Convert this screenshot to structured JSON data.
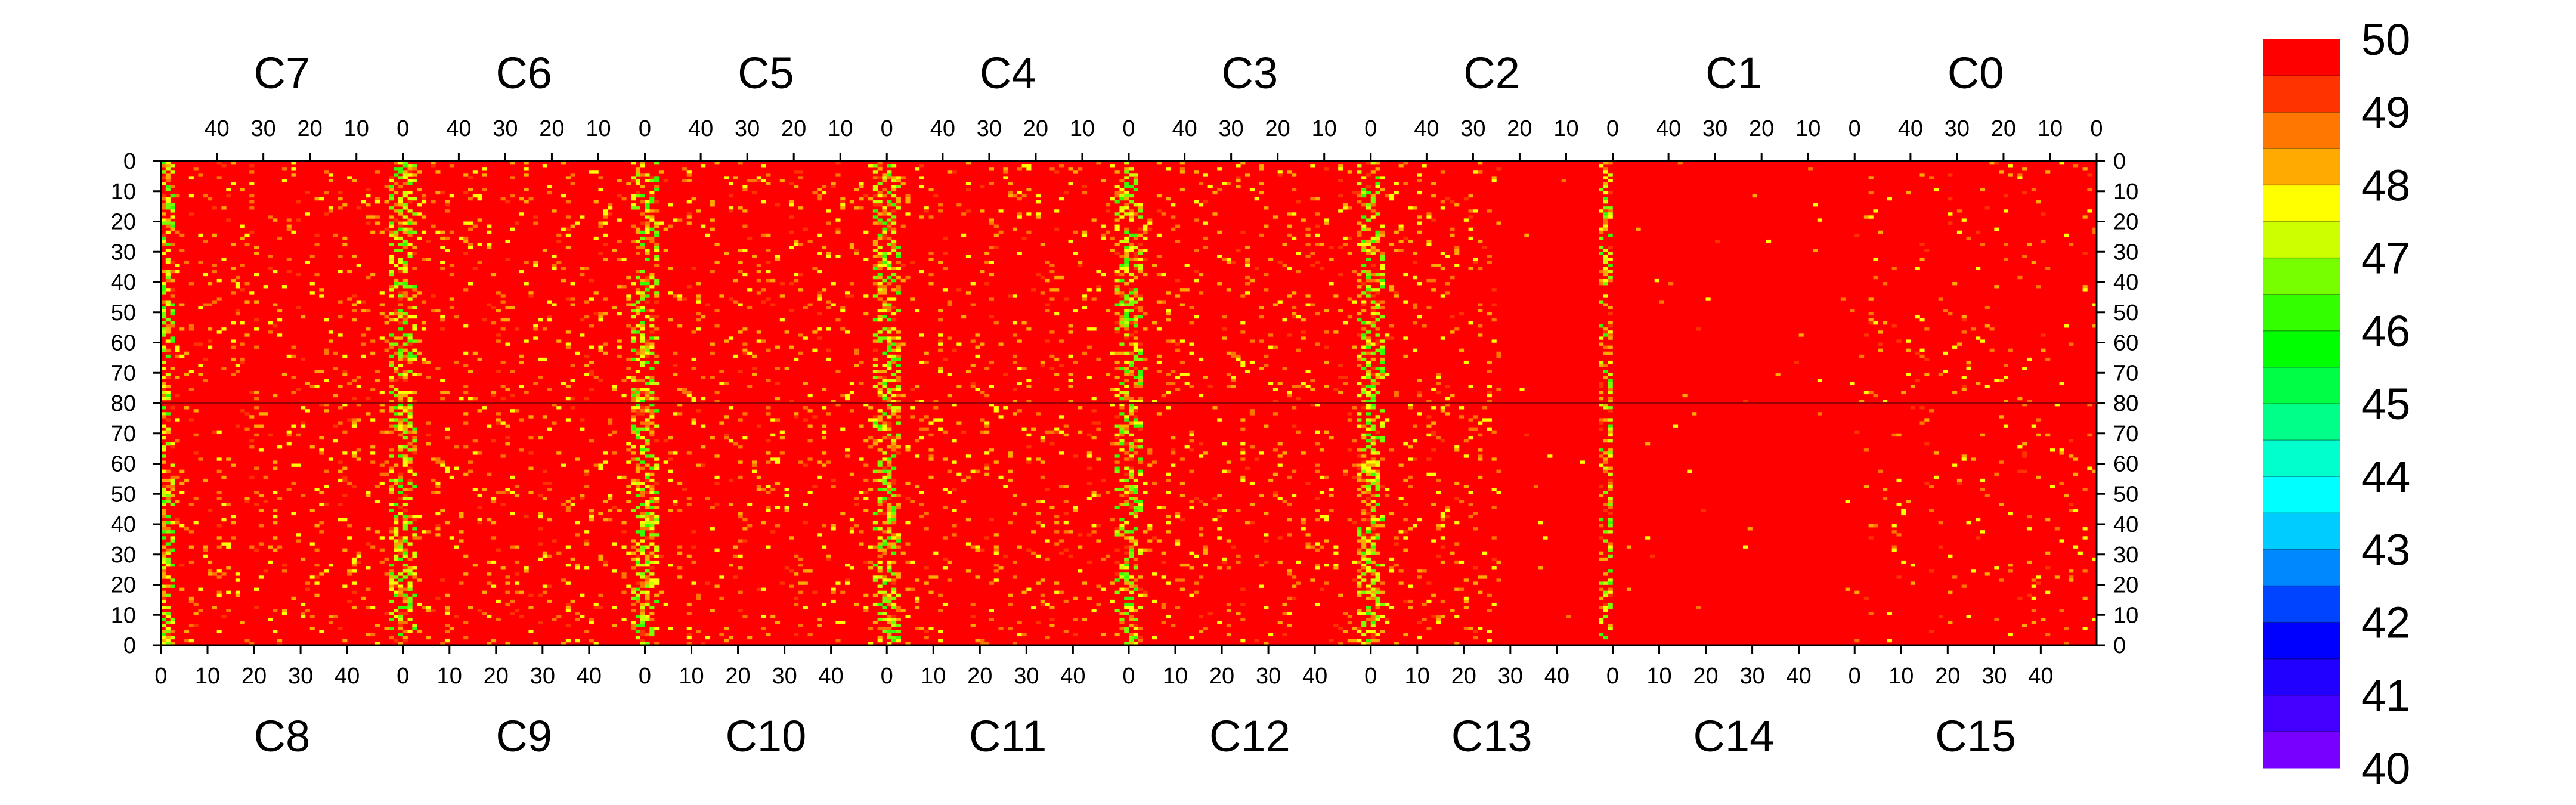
{
  "chart_data": {
    "type": "heatmap",
    "top_chips": [
      "C7",
      "C6",
      "C5",
      "C4",
      "C3",
      "C2",
      "C1",
      "C0"
    ],
    "bottom_chips": [
      "C8",
      "C9",
      "C10",
      "C11",
      "C12",
      "C13",
      "C14",
      "C15"
    ],
    "top_col_ticks": [
      "40",
      "30",
      "20",
      "10",
      "0"
    ],
    "bottom_col_ticks": [
      "0",
      "10",
      "20",
      "30",
      "40"
    ],
    "top_col_tick_values": [
      40,
      30,
      20,
      10,
      0
    ],
    "bottom_col_tick_values": [
      0,
      10,
      20,
      30,
      40
    ],
    "row_ticks_top": [
      "0",
      "10",
      "20",
      "30",
      "40",
      "50",
      "60",
      "70",
      "80"
    ],
    "row_ticks_bottom": [
      "80",
      "70",
      "60",
      "50",
      "40",
      "30",
      "20",
      "10",
      "0"
    ],
    "row_tick_values": [
      0,
      10,
      20,
      30,
      40,
      50,
      60,
      70,
      80
    ],
    "columns_per_chip": 52,
    "rows_per_half": 80,
    "zlim": [
      40,
      50
    ],
    "colorbar_ticks": [
      "50",
      "49",
      "48",
      "47",
      "46",
      "45",
      "44",
      "43",
      "42",
      "41",
      "40"
    ],
    "colorbar_colors": [
      "#ff0000",
      "#ff3300",
      "#ff7700",
      "#ffaa00",
      "#ffff00",
      "#ccff00",
      "#77ff00",
      "#33ff00",
      "#00ff00",
      "#00ff44",
      "#00ff88",
      "#00ffcc",
      "#00ffff",
      "#00ccff",
      "#0088ff",
      "#0044ff",
      "#0000ff",
      "#2200ff",
      "#4400ff",
      "#7700ff"
    ],
    "predominant_value": 50,
    "noisy_columns_by_chip_edge": [
      "C7/C6 boundary",
      "C6/C5 boundary",
      "C5/C4 boundary",
      "C4/C3 boundary",
      "C3/C2 boundary"
    ],
    "grid": false,
    "legend_placement": "right"
  }
}
